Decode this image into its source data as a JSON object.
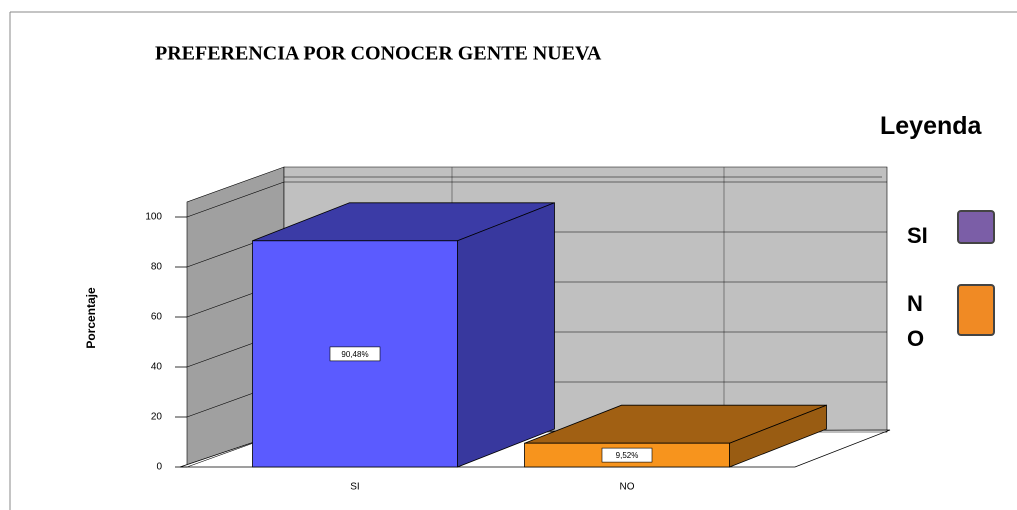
{
  "chart_data": {
    "type": "bar3d",
    "title": "PREFERENCIA POR CONOCER GENTE NUEVA",
    "y_label": "Porcentaje",
    "categories": [
      "SI",
      "NO"
    ],
    "values": [
      90.48,
      9.52
    ],
    "value_labels": [
      "90,48%",
      "9,52%"
    ],
    "colors": [
      "#5b5bff",
      "#f7941d"
    ],
    "ylim": [
      0,
      106
    ],
    "yticks": [
      0,
      20,
      40,
      60,
      80,
      100
    ],
    "grid": true,
    "legend": {
      "title": "Leyenda",
      "position": "right",
      "entries": [
        {
          "label": "SI",
          "color": "#7b5ea7"
        },
        {
          "label": "NO",
          "color": "#f08a24"
        }
      ]
    }
  }
}
